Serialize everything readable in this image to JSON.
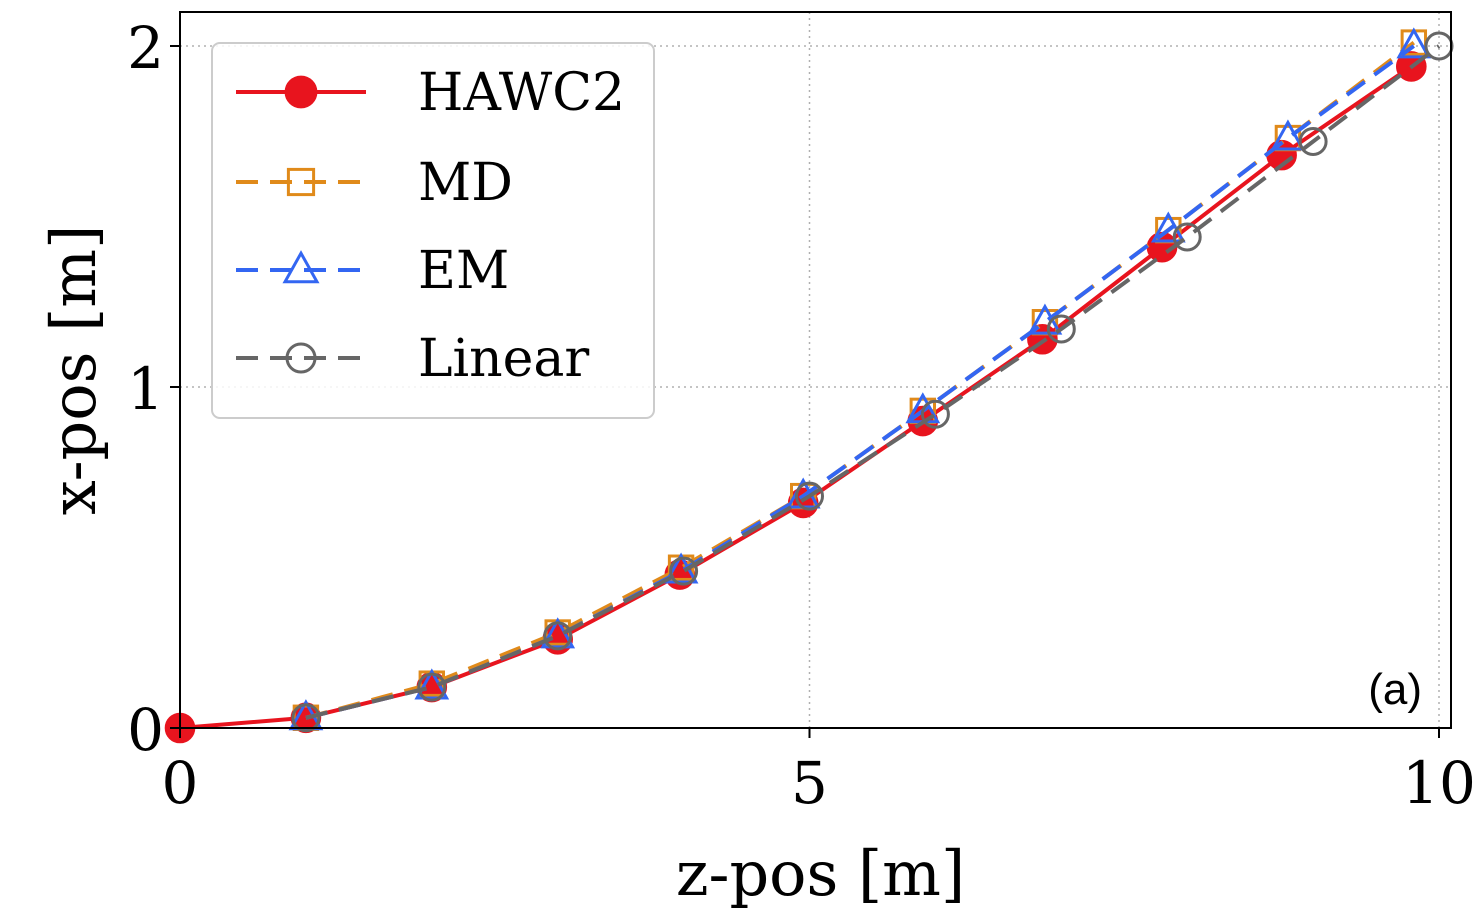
{
  "chart_data": {
    "type": "line",
    "title": "",
    "xlabel": "z-pos [m]",
    "ylabel": "x-pos [m]",
    "panel_label": "(a)",
    "xlim": [
      0,
      10.1
    ],
    "ylim": [
      0,
      2.1
    ],
    "xticks": [
      0,
      5,
      10
    ],
    "yticks": [
      0,
      1,
      2
    ],
    "xtick_labels": [
      "0",
      "5",
      "10"
    ],
    "ytick_labels": [
      "0",
      "1",
      "2"
    ],
    "grid": true,
    "legend_position": "top-left",
    "series": [
      {
        "name": "HAWC2",
        "color": "#e8141e",
        "marker": "filled-circle",
        "line": "solid",
        "x": [
          0.0,
          1.0,
          2.0,
          3.0,
          3.97,
          4.95,
          5.9,
          6.85,
          7.8,
          8.75,
          9.78
        ],
        "y": [
          0.0,
          0.03,
          0.12,
          0.26,
          0.45,
          0.66,
          0.9,
          1.14,
          1.41,
          1.68,
          1.94
        ]
      },
      {
        "name": "MD",
        "color": "#e08a1a",
        "marker": "open-square",
        "line": "dashed",
        "x": [
          1.0,
          2.0,
          3.0,
          3.98,
          4.95,
          5.9,
          6.87,
          7.85,
          8.8,
          9.8
        ],
        "y": [
          0.03,
          0.13,
          0.28,
          0.47,
          0.68,
          0.93,
          1.19,
          1.46,
          1.73,
          2.01
        ]
      },
      {
        "name": "EM",
        "color": "#3366f2",
        "marker": "open-triangle",
        "line": "dashed",
        "x": [
          1.0,
          2.0,
          3.0,
          3.98,
          4.95,
          5.9,
          6.87,
          7.85,
          8.8,
          9.8
        ],
        "y": [
          0.03,
          0.12,
          0.27,
          0.46,
          0.68,
          0.93,
          1.19,
          1.46,
          1.73,
          2.0
        ]
      },
      {
        "name": "Linear",
        "color": "#666666",
        "marker": "open-circle",
        "line": "dashed",
        "x": [
          1.0,
          2.0,
          3.0,
          4.0,
          5.0,
          6.0,
          7.0,
          8.0,
          9.0,
          10.0
        ],
        "y": [
          0.03,
          0.12,
          0.27,
          0.46,
          0.68,
          0.92,
          1.17,
          1.44,
          1.72,
          2.0
        ]
      }
    ]
  }
}
